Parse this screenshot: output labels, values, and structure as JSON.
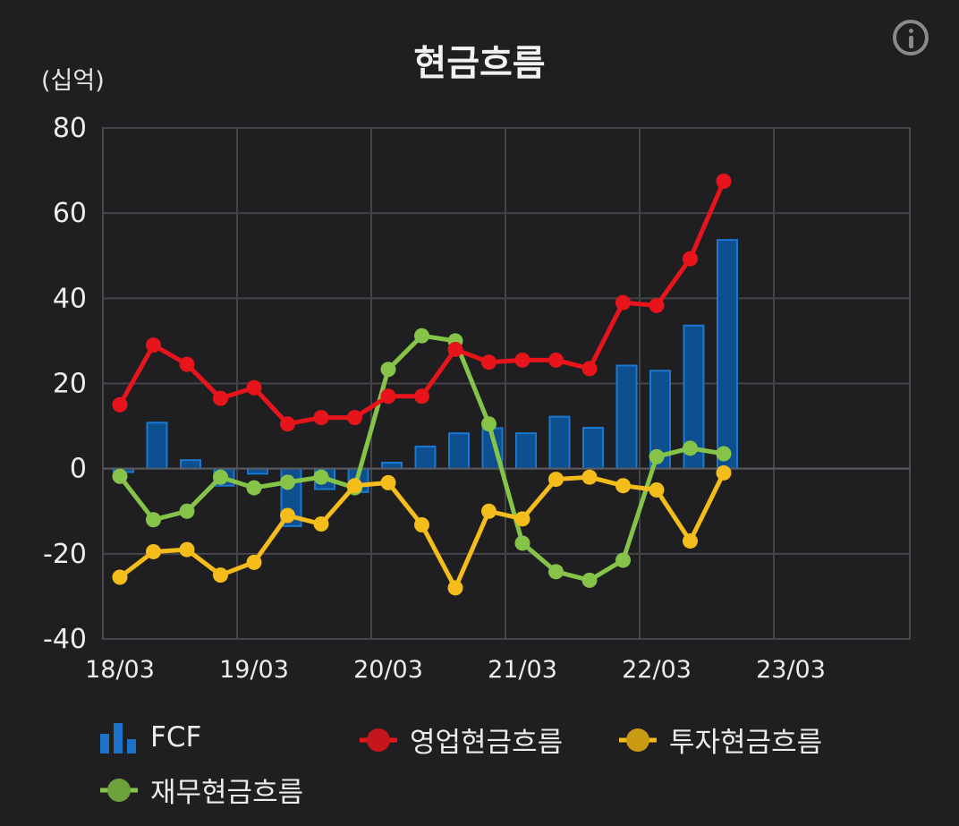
{
  "header": {
    "title": "현금흐름",
    "unit": "(십억)",
    "info_icon": "info-icon"
  },
  "legend": [
    {
      "key": "fcf",
      "label": "FCF",
      "icon": "bar-chart-icon",
      "color": "#1a73c9"
    },
    {
      "key": "operating",
      "label": "영업현금흐름",
      "icon": "line-dot-icon",
      "color": "#e8141b"
    },
    {
      "key": "investing",
      "label": "투자현금흐름",
      "icon": "line-dot-icon",
      "color": "#f4bd1b"
    },
    {
      "key": "financing",
      "label": "재무현금흐름",
      "icon": "line-dot-icon",
      "color": "#86c449"
    }
  ],
  "chart_data": {
    "type": "bar+line",
    "title": "현금흐름",
    "ylabel": "(십억)",
    "ylim": [
      -40,
      80
    ],
    "yticks": [
      80,
      60,
      40,
      20,
      0,
      -20,
      -40
    ],
    "x_tick_labels": [
      "18/03",
      "19/03",
      "20/03",
      "21/03",
      "22/03",
      "23/03"
    ],
    "x": [
      "18/03",
      "18/06",
      "18/09",
      "18/12",
      "19/03",
      "19/06",
      "19/09",
      "19/12",
      "20/03",
      "20/06",
      "20/09",
      "20/12",
      "21/03",
      "21/06",
      "21/09",
      "21/12",
      "22/03",
      "22/06",
      "22/09"
    ],
    "grid": true,
    "legend_position": "bottom",
    "series": [
      {
        "name": "FCF",
        "type": "bar",
        "color": "#1a73c9",
        "values": [
          -0.8,
          10.8,
          2,
          -4,
          -1.2,
          -13.5,
          -4.8,
          -5.5,
          1.4,
          5.2,
          8.3,
          9.5,
          8.3,
          12.2,
          9.6,
          24.2,
          23,
          33.6,
          53.7
        ]
      },
      {
        "name": "영업현금흐름",
        "type": "line",
        "color": "#e8141b",
        "values": [
          15,
          29,
          24.5,
          16.5,
          19,
          10.5,
          12,
          12,
          17,
          17,
          28,
          25,
          25.5,
          25.5,
          23.5,
          39,
          38.3,
          49.3,
          67.5
        ]
      },
      {
        "name": "투자현금흐름",
        "type": "line",
        "color": "#f4bd1b",
        "values": [
          -25.5,
          -19.5,
          -19,
          -25,
          -22,
          -11,
          -13,
          -4,
          -3.3,
          -13.2,
          -28,
          -10,
          -11.8,
          -2.5,
          -2,
          -4,
          -5,
          -17,
          -1
        ]
      },
      {
        "name": "재무현금흐름",
        "type": "line",
        "color": "#86c449",
        "values": [
          -1.8,
          -12,
          -10,
          -2,
          -4.5,
          -3.2,
          -2,
          -4.5,
          23.3,
          31.2,
          30,
          10.5,
          -17.5,
          -24.2,
          -26.2,
          -21.5,
          2.8,
          4.8,
          3.5
        ]
      }
    ]
  }
}
